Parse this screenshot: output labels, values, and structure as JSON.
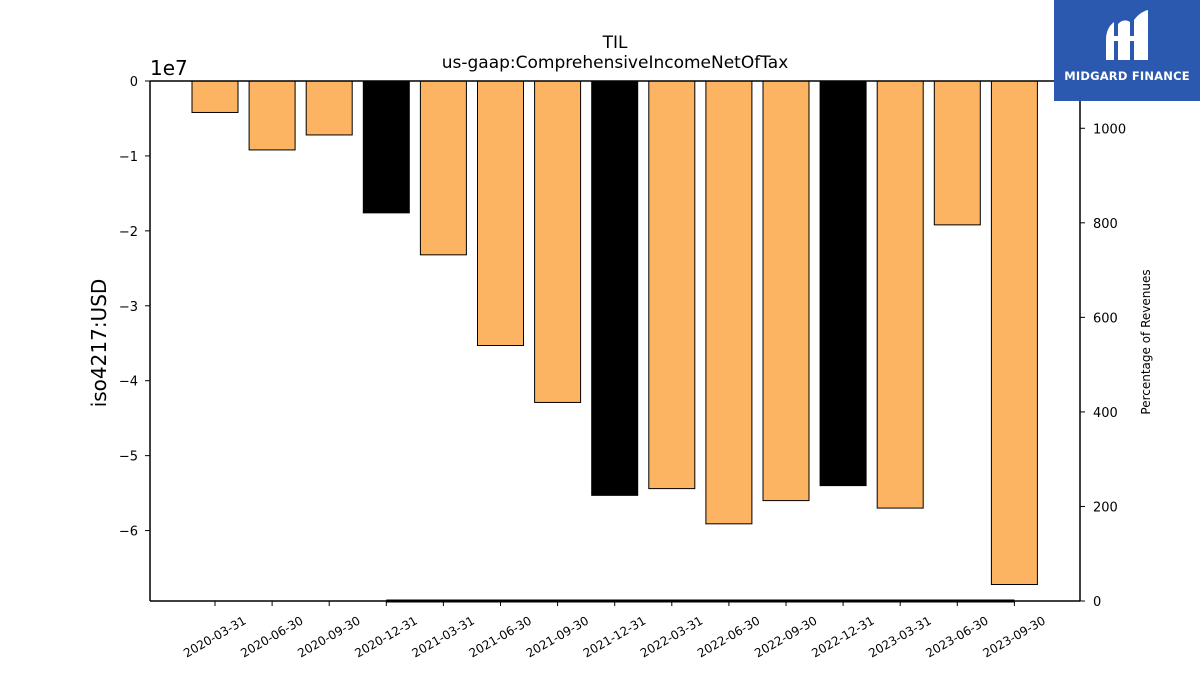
{
  "chart_data": {
    "type": "bar",
    "title": "TIL",
    "subtitle": "us-gaap:ComprehensiveIncomeNetOfTax",
    "ylabel": "iso4217:USD",
    "y_exponent_label": "1e7",
    "y2label": "Percentage of Revenues",
    "categories": [
      "2020-03-31",
      "2020-06-30",
      "2020-09-30",
      "2020-12-31",
      "2021-03-31",
      "2021-06-30",
      "2021-09-30",
      "2021-12-31",
      "2022-03-31",
      "2022-06-30",
      "2022-09-30",
      "2022-12-31",
      "2023-03-31",
      "2023-06-30",
      "2023-09-30"
    ],
    "values": [
      -4200000,
      -9200000,
      -7200000,
      -17600000,
      -23200000,
      -35300000,
      -42900000,
      -55300000,
      -54400000,
      -59100000,
      -56000000,
      -54000000,
      -57000000,
      -19200000,
      -67200000
    ],
    "bar_colors": [
      "#fdb462",
      "#fdb462",
      "#fdb462",
      "#000000",
      "#fdb462",
      "#fdb462",
      "#fdb462",
      "#000000",
      "#fdb462",
      "#fdb462",
      "#fdb462",
      "#000000",
      "#fdb462",
      "#fdb462",
      "#fdb462"
    ],
    "ylim": [
      -69400000,
      0
    ],
    "yticks": [
      0,
      -1,
      -2,
      -3,
      -4,
      -5,
      -6
    ],
    "ytick_labels": [
      "0",
      "−1",
      "−2",
      "−3",
      "−4",
      "−5",
      "−6"
    ],
    "y2lim": [
      0,
      1100
    ],
    "y2ticks": [
      0,
      200,
      400,
      600,
      800,
      1000
    ],
    "y2tick_labels": [
      "0",
      "200",
      "400",
      "600",
      "800",
      "1000"
    ],
    "grid": false
  },
  "logo": {
    "text": "MIDGARD FINANCE",
    "background": "#2b59b0"
  }
}
